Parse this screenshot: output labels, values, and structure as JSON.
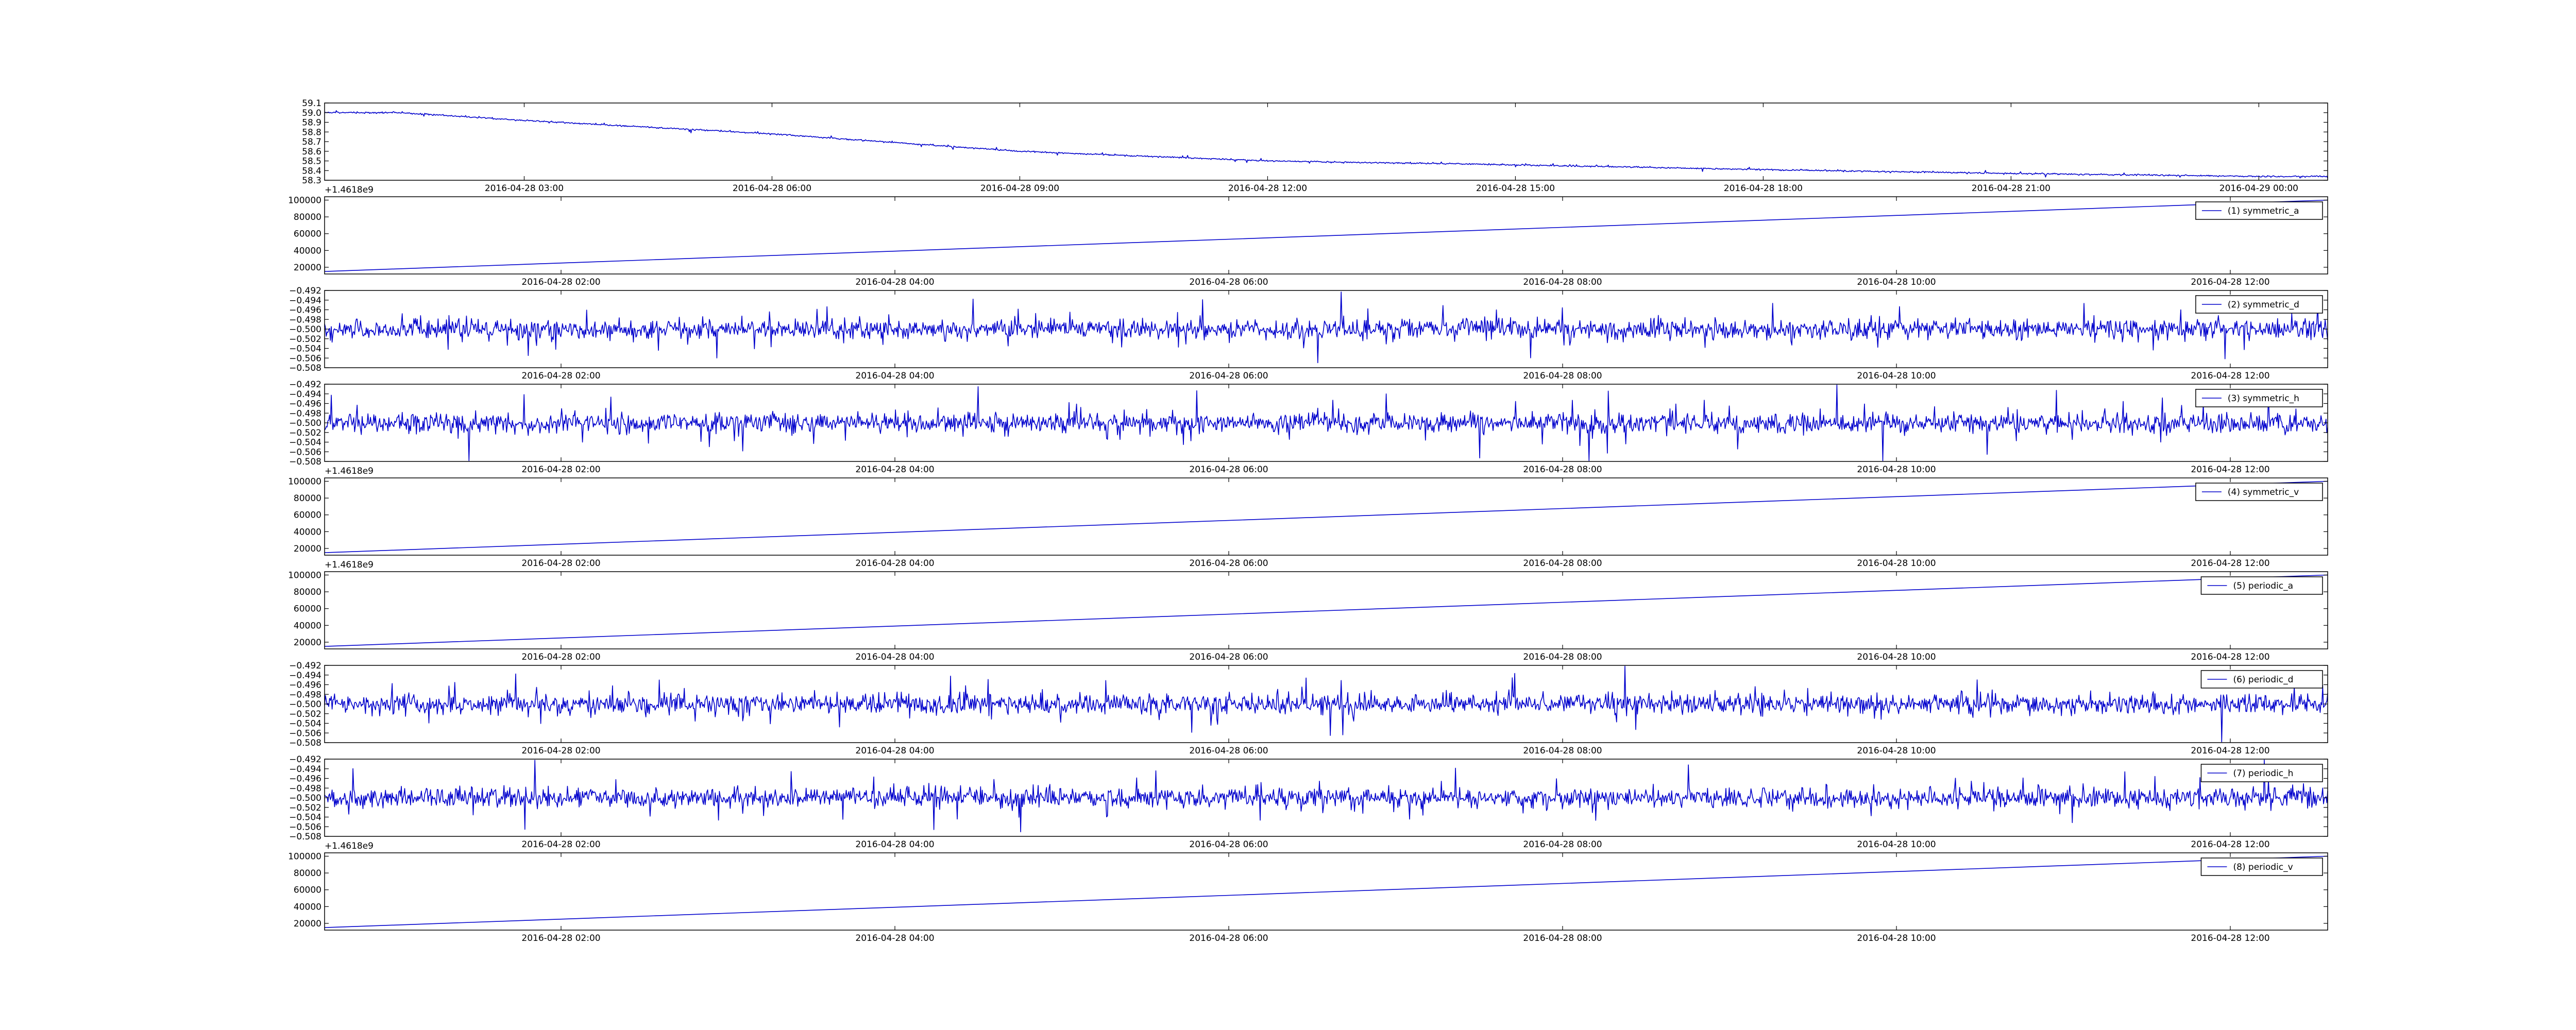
{
  "figure": {
    "background": "#ffffff",
    "line_color": "#0000cc"
  },
  "chart_data": [
    {
      "type": "line",
      "panel": 0,
      "title": "",
      "xlabel": "",
      "ylabel": "",
      "legend": "",
      "offset_text": "+1.4618e9",
      "x_is_time": true,
      "xlim": [
        "2016-04-28 00:35",
        "2016-04-29 00:50"
      ],
      "ylim": [
        58.3,
        59.1
      ],
      "yticks": [
        "58.3",
        "58.4",
        "58.5",
        "58.6",
        "58.7",
        "58.8",
        "58.9",
        "59.0",
        "59.1"
      ],
      "xticks": [
        "2016-04-28 03:00",
        "2016-04-28 06:00",
        "2016-04-28 09:00",
        "2016-04-28 12:00",
        "2016-04-28 15:00",
        "2016-04-28 18:00",
        "2016-04-28 21:00",
        "2016-04-29 00:00"
      ],
      "x": [
        "2016-04-28 00:35",
        "2016-04-28 01:30",
        "2016-04-28 03:00",
        "2016-04-28 06:00",
        "2016-04-28 09:00",
        "2016-04-28 12:00",
        "2016-04-28 15:00",
        "2016-04-28 18:00",
        "2016-04-28 21:00",
        "2016-04-29 00:00",
        "2016-04-29 00:50"
      ],
      "y": [
        59.0,
        59.0,
        58.92,
        58.78,
        58.6,
        58.5,
        58.46,
        58.41,
        58.37,
        58.34,
        58.34
      ],
      "noise": 0.008,
      "seed": 11
    },
    {
      "type": "line",
      "panel": 1,
      "legend": "(1) symmetric_a",
      "offset_text": "",
      "x_is_time": true,
      "xlim": [
        "2016-04-28 00:35",
        "2016-04-28 12:35"
      ],
      "ylim": [
        12000,
        104000
      ],
      "yticks": [
        "20000",
        "40000",
        "60000",
        "80000",
        "100000"
      ],
      "xticks": [
        "2016-04-28 02:00",
        "2016-04-28 04:00",
        "2016-04-28 06:00",
        "2016-04-28 08:00",
        "2016-04-28 10:00",
        "2016-04-28 12:00"
      ],
      "x": [
        "2016-04-28 00:35",
        "2016-04-28 12:35"
      ],
      "y": [
        15000,
        100000
      ],
      "noise": 0,
      "seed": 1
    },
    {
      "type": "line",
      "panel": 2,
      "legend": "(2) symmetric_d",
      "offset_text": "",
      "x_is_time": true,
      "xlim": [
        "2016-04-28 00:35",
        "2016-04-28 12:35"
      ],
      "ylim": [
        -0.508,
        -0.492
      ],
      "yticks": [
        "−0.508",
        "−0.506",
        "−0.504",
        "−0.502",
        "−0.500",
        "−0.498",
        "−0.496",
        "−0.494",
        "−0.492"
      ],
      "xticks": [
        "2016-04-28 02:00",
        "2016-04-28 04:00",
        "2016-04-28 06:00",
        "2016-04-28 08:00",
        "2016-04-28 10:00",
        "2016-04-28 12:00"
      ],
      "x": [
        "2016-04-28 00:35",
        "2016-04-28 12:35"
      ],
      "y": [
        -0.5,
        -0.5
      ],
      "noise": 0.0022,
      "seed": 2
    },
    {
      "type": "line",
      "panel": 3,
      "legend": "(3) symmetric_h",
      "offset_text": "+1.4618e9",
      "x_is_time": true,
      "xlim": [
        "2016-04-28 00:35",
        "2016-04-28 12:35"
      ],
      "ylim": [
        -0.508,
        -0.492
      ],
      "yticks": [
        "−0.508",
        "−0.506",
        "−0.504",
        "−0.502",
        "−0.500",
        "−0.498",
        "−0.496",
        "−0.494",
        "−0.492"
      ],
      "xticks": [
        "2016-04-28 02:00",
        "2016-04-28 04:00",
        "2016-04-28 06:00",
        "2016-04-28 08:00",
        "2016-04-28 10:00",
        "2016-04-28 12:00"
      ],
      "x": [
        "2016-04-28 00:35",
        "2016-04-28 12:35"
      ],
      "y": [
        -0.5,
        -0.5
      ],
      "noise": 0.0022,
      "seed": 3
    },
    {
      "type": "line",
      "panel": 4,
      "legend": "(4) symmetric_v",
      "offset_text": "+1.4618e9",
      "x_is_time": true,
      "xlim": [
        "2016-04-28 00:35",
        "2016-04-28 12:35"
      ],
      "ylim": [
        12000,
        104000
      ],
      "yticks": [
        "20000",
        "40000",
        "60000",
        "80000",
        "100000"
      ],
      "xticks": [
        "2016-04-28 02:00",
        "2016-04-28 04:00",
        "2016-04-28 06:00",
        "2016-04-28 08:00",
        "2016-04-28 10:00",
        "2016-04-28 12:00"
      ],
      "x": [
        "2016-04-28 00:35",
        "2016-04-28 12:35"
      ],
      "y": [
        15000,
        100000
      ],
      "noise": 0,
      "seed": 4
    },
    {
      "type": "line",
      "panel": 5,
      "legend": "(5) periodic_a",
      "offset_text": "",
      "x_is_time": true,
      "xlim": [
        "2016-04-28 00:35",
        "2016-04-28 12:35"
      ],
      "ylim": [
        12000,
        104000
      ],
      "yticks": [
        "20000",
        "40000",
        "60000",
        "80000",
        "100000"
      ],
      "xticks": [
        "2016-04-28 02:00",
        "2016-04-28 04:00",
        "2016-04-28 06:00",
        "2016-04-28 08:00",
        "2016-04-28 10:00",
        "2016-04-28 12:00"
      ],
      "x": [
        "2016-04-28 00:35",
        "2016-04-28 12:35"
      ],
      "y": [
        15000,
        100000
      ],
      "noise": 0,
      "seed": 5
    },
    {
      "type": "line",
      "panel": 6,
      "legend": "(6) periodic_d",
      "offset_text": "",
      "x_is_time": true,
      "xlim": [
        "2016-04-28 00:35",
        "2016-04-28 12:35"
      ],
      "ylim": [
        -0.508,
        -0.492
      ],
      "yticks": [
        "−0.508",
        "−0.506",
        "−0.504",
        "−0.502",
        "−0.500",
        "−0.498",
        "−0.496",
        "−0.494",
        "−0.492"
      ],
      "xticks": [
        "2016-04-28 02:00",
        "2016-04-28 04:00",
        "2016-04-28 06:00",
        "2016-04-28 08:00",
        "2016-04-28 10:00",
        "2016-04-28 12:00"
      ],
      "x": [
        "2016-04-28 00:35",
        "2016-04-28 12:35"
      ],
      "y": [
        -0.5,
        -0.5
      ],
      "noise": 0.0022,
      "seed": 6
    },
    {
      "type": "line",
      "panel": 7,
      "legend": "(7) periodic_h",
      "offset_text": "+1.4618e9",
      "x_is_time": true,
      "xlim": [
        "2016-04-28 00:35",
        "2016-04-28 12:35"
      ],
      "ylim": [
        -0.508,
        -0.492
      ],
      "yticks": [
        "−0.508",
        "−0.506",
        "−0.504",
        "−0.502",
        "−0.500",
        "−0.498",
        "−0.496",
        "−0.494",
        "−0.492"
      ],
      "xticks": [
        "2016-04-28 02:00",
        "2016-04-28 04:00",
        "2016-04-28 06:00",
        "2016-04-28 08:00",
        "2016-04-28 10:00",
        "2016-04-28 12:00"
      ],
      "x": [
        "2016-04-28 00:35",
        "2016-04-28 12:35"
      ],
      "y": [
        -0.5,
        -0.5
      ],
      "noise": 0.0022,
      "seed": 7
    },
    {
      "type": "line",
      "panel": 8,
      "legend": "(8) periodic_v",
      "offset_text": "",
      "x_is_time": true,
      "xlim": [
        "2016-04-28 00:35",
        "2016-04-28 12:35"
      ],
      "ylim": [
        12000,
        104000
      ],
      "yticks": [
        "20000",
        "40000",
        "60000",
        "80000",
        "100000"
      ],
      "xticks": [
        "2016-04-28 02:00",
        "2016-04-28 04:00",
        "2016-04-28 06:00",
        "2016-04-28 08:00",
        "2016-04-28 10:00",
        "2016-04-28 12:00"
      ],
      "x": [
        "2016-04-28 00:35",
        "2016-04-28 12:35"
      ],
      "y": [
        15000,
        100000
      ],
      "noise": 0,
      "seed": 8
    }
  ]
}
